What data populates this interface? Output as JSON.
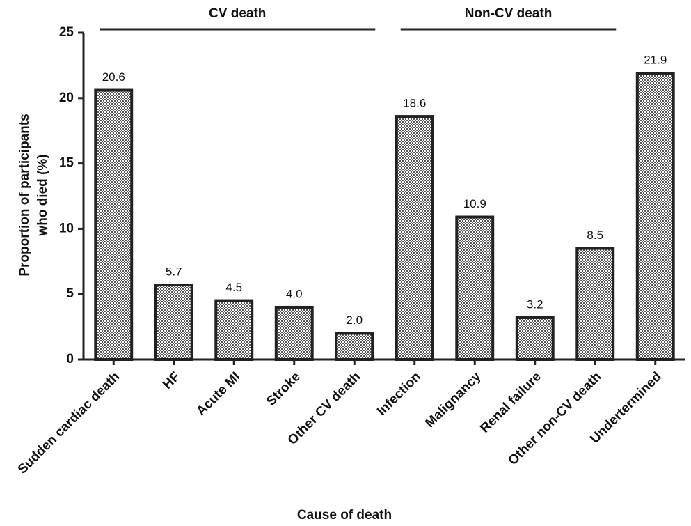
{
  "chart_data": {
    "type": "bar",
    "y_label": [
      "Proportion of participants",
      "who died (%)"
    ],
    "x_label": "Cause of death",
    "groups": [
      "CV death",
      "Non-CV death"
    ],
    "categories": [
      "Sudden cardiac death",
      "HF",
      "Acute MI",
      "Stroke",
      "Other CV death",
      "Infection",
      "Malignancy",
      "Renal failure",
      "Other non-CV death",
      "Undertermined"
    ],
    "values": [
      20.6,
      5.7,
      4.5,
      4,
      2,
      18.6,
      10.9,
      3.2,
      8.5,
      21.9
    ],
    "value_labels": [
      "20.6",
      "5.7",
      "4.5",
      "4.0",
      "2.0",
      "18.6",
      "10.9",
      "3.2",
      "8.5",
      "21.9"
    ],
    "color": "#9a9a9a",
    "ylim": [
      0,
      25
    ],
    "yticks": [
      0,
      5,
      10,
      15,
      20,
      25
    ],
    "grid": false
  }
}
